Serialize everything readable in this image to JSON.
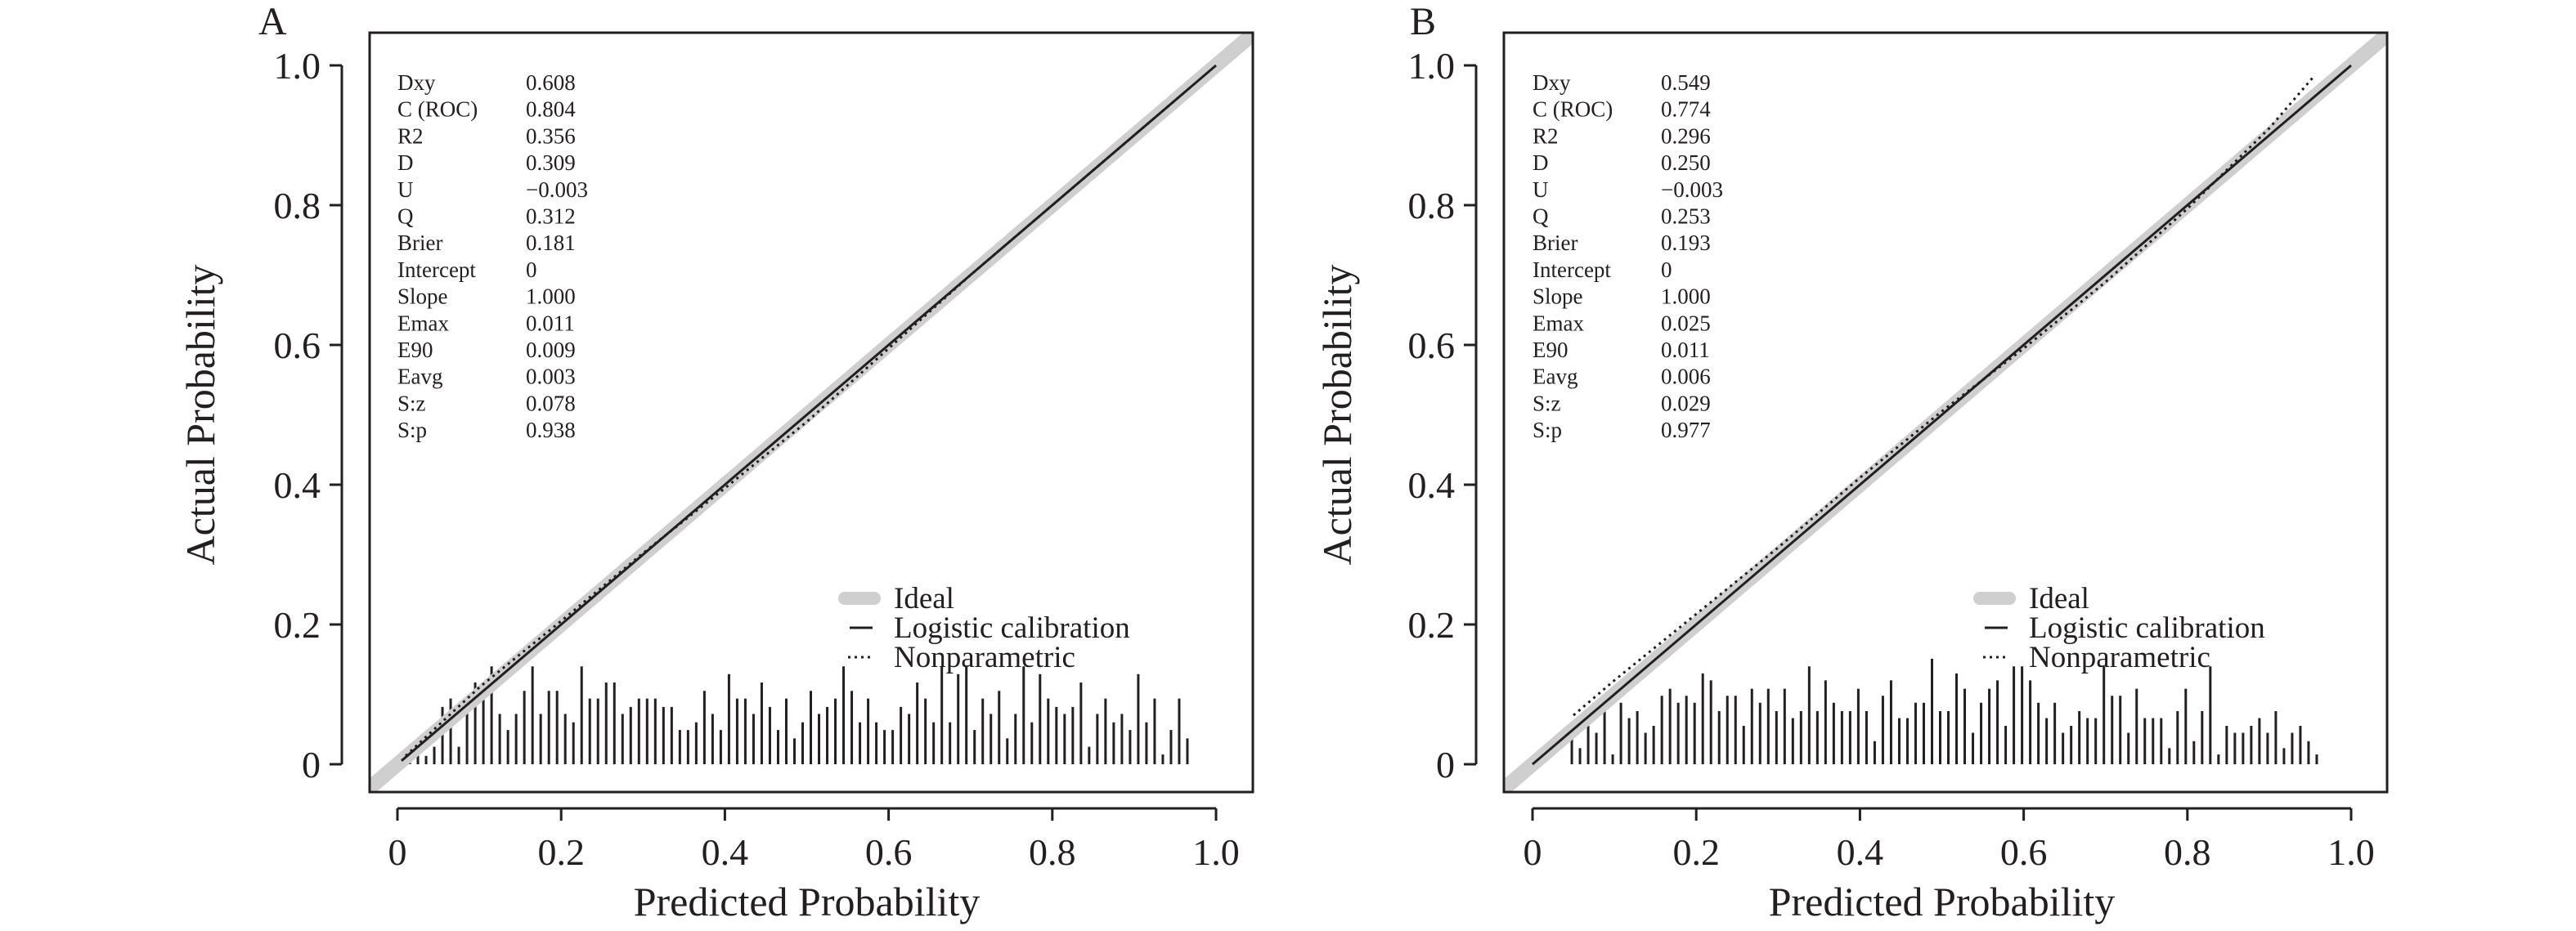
{
  "chart_data": [
    {
      "type": "line",
      "panel_label": "A",
      "xlabel": "Predicted Probability",
      "ylabel": "Actual Probability",
      "xlim": [
        -0.035,
        1.045
      ],
      "ylim": [
        -0.04,
        1.047
      ],
      "xticks": [
        "0",
        "0.2",
        "0.4",
        "0.6",
        "0.8",
        "1.0"
      ],
      "yticks": [
        "0",
        "0.2",
        "0.4",
        "0.6",
        "0.8",
        "1.0"
      ],
      "stats": [
        {
          "name": "Dxy",
          "value": "0.608"
        },
        {
          "name": "C (ROC)",
          "value": "0.804"
        },
        {
          "name": "R2",
          "value": "0.356"
        },
        {
          "name": "D",
          "value": "0.309"
        },
        {
          "name": "U",
          "value": "−0.003"
        },
        {
          "name": "Q",
          "value": "0.312"
        },
        {
          "name": "Brier",
          "value": "0.181"
        },
        {
          "name": "Intercept",
          "value": "0"
        },
        {
          "name": "Slope",
          "value": "1.000"
        },
        {
          "name": "Emax",
          "value": "0.011"
        },
        {
          "name": "E90",
          "value": "0.009"
        },
        {
          "name": "Eavg",
          "value": "0.003"
        },
        {
          "name": "S:z",
          "value": "0.078"
        },
        {
          "name": "S:p",
          "value": "0.938"
        }
      ],
      "legend": {
        "position": "bottom-right",
        "items": [
          "Ideal",
          "Logistic calibration",
          "Nonparametric"
        ]
      },
      "series": [
        {
          "name": "Ideal",
          "x": [
            -0.05,
            1.06
          ],
          "y": [
            -0.05,
            1.06
          ]
        },
        {
          "name": "Logistic calibration",
          "x": [
            0.005,
            1.0
          ],
          "y": [
            0.005,
            1.0
          ]
        },
        {
          "name": "Nonparametric",
          "x": [
            0.01,
            0.1,
            0.2,
            0.3,
            0.4,
            0.5,
            0.6,
            0.7,
            0.8,
            0.9,
            0.96
          ],
          "y": [
            0.012,
            0.11,
            0.205,
            0.302,
            0.395,
            0.49,
            0.595,
            0.7,
            0.8,
            0.9,
            0.96
          ]
        }
      ],
      "histogram": {
        "x_start": 0.005,
        "x_step": 0.01,
        "heights": [
          0.004,
          0.014,
          0.014,
          0.012,
          0.025,
          0.082,
          0.094,
          0.025,
          0.094,
          0.117,
          0.105,
          0.14,
          0.072,
          0.049,
          0.072,
          0.105,
          0.14,
          0.072,
          0.105,
          0.105,
          0.072,
          0.06,
          0.14,
          0.094,
          0.094,
          0.117,
          0.117,
          0.072,
          0.082,
          0.094,
          0.094,
          0.094,
          0.082,
          0.082,
          0.049,
          0.049,
          0.06,
          0.105,
          0.072,
          0.049,
          0.129,
          0.094,
          0.094,
          0.072,
          0.117,
          0.082,
          0.049,
          0.094,
          0.037,
          0.06,
          0.105,
          0.072,
          0.082,
          0.094,
          0.14,
          0.105,
          0.06,
          0.094,
          0.06,
          0.049,
          0.049,
          0.082,
          0.072,
          0.117,
          0.094,
          0.06,
          0.14,
          0.06,
          0.129,
          0.14,
          0.049,
          0.094,
          0.072,
          0.105,
          0.037,
          0.072,
          0.14,
          0.06,
          0.129,
          0.094,
          0.082,
          0.072,
          0.082,
          0.117,
          0.025,
          0.072,
          0.094,
          0.06,
          0.072,
          0.049,
          0.129,
          0.06,
          0.094,
          0.014,
          0.049,
          0.094,
          0.037
        ]
      }
    },
    {
      "type": "line",
      "panel_label": "B",
      "xlabel": "Predicted Probability",
      "ylabel": "Actual Probability",
      "xlim": [
        -0.035,
        1.045
      ],
      "ylim": [
        -0.04,
        1.047
      ],
      "xticks": [
        "0",
        "0.2",
        "0.4",
        "0.6",
        "0.8",
        "1.0"
      ],
      "yticks": [
        "0",
        "0.2",
        "0.4",
        "0.6",
        "0.8",
        "1.0"
      ],
      "stats": [
        {
          "name": "Dxy",
          "value": "0.549"
        },
        {
          "name": "C (ROC)",
          "value": "0.774"
        },
        {
          "name": "R2",
          "value": "0.296"
        },
        {
          "name": "D",
          "value": "0.250"
        },
        {
          "name": "U",
          "value": "−0.003"
        },
        {
          "name": "Q",
          "value": "0.253"
        },
        {
          "name": "Brier",
          "value": "0.193"
        },
        {
          "name": "Intercept",
          "value": "0"
        },
        {
          "name": "Slope",
          "value": "1.000"
        },
        {
          "name": "Emax",
          "value": "0.025"
        },
        {
          "name": "E90",
          "value": "0.011"
        },
        {
          "name": "Eavg",
          "value": "0.006"
        },
        {
          "name": "S:z",
          "value": "0.029"
        },
        {
          "name": "S:p",
          "value": "0.977"
        }
      ],
      "legend": {
        "position": "bottom-right",
        "items": [
          "Ideal",
          "Logistic calibration",
          "Nonparametric"
        ]
      },
      "series": [
        {
          "name": "Ideal",
          "x": [
            -0.05,
            1.06
          ],
          "y": [
            -0.05,
            1.06
          ]
        },
        {
          "name": "Logistic calibration",
          "x": [
            0.0,
            1.0
          ],
          "y": [
            0.0,
            1.0
          ]
        },
        {
          "name": "Nonparametric",
          "x": [
            0.05,
            0.1,
            0.2,
            0.3,
            0.4,
            0.5,
            0.6,
            0.7,
            0.8,
            0.9,
            0.955
          ],
          "y": [
            0.07,
            0.12,
            0.215,
            0.31,
            0.41,
            0.505,
            0.595,
            0.69,
            0.795,
            0.91,
            0.985
          ]
        }
      ],
      "histogram": {
        "x_start": 0.048,
        "x_step": 0.01,
        "heights": [
          0.045,
          0.023,
          0.055,
          0.045,
          0.088,
          0.014,
          0.088,
          0.066,
          0.076,
          0.045,
          0.055,
          0.098,
          0.108,
          0.088,
          0.098,
          0.088,
          0.13,
          0.12,
          0.076,
          0.098,
          0.098,
          0.055,
          0.108,
          0.088,
          0.108,
          0.076,
          0.108,
          0.066,
          0.076,
          0.14,
          0.076,
          0.12,
          0.088,
          0.076,
          0.076,
          0.108,
          0.076,
          0.033,
          0.098,
          0.12,
          0.066,
          0.066,
          0.088,
          0.088,
          0.151,
          0.076,
          0.076,
          0.13,
          0.108,
          0.045,
          0.088,
          0.108,
          0.12,
          0.055,
          0.14,
          0.14,
          0.12,
          0.088,
          0.066,
          0.088,
          0.045,
          0.055,
          0.076,
          0.066,
          0.066,
          0.14,
          0.098,
          0.098,
          0.045,
          0.108,
          0.066,
          0.066,
          0.066,
          0.023,
          0.076,
          0.108,
          0.033,
          0.076,
          0.14,
          0.014,
          0.055,
          0.045,
          0.045,
          0.055,
          0.066,
          0.045,
          0.076,
          0.023,
          0.045,
          0.055,
          0.033,
          0.014
        ]
      }
    }
  ]
}
